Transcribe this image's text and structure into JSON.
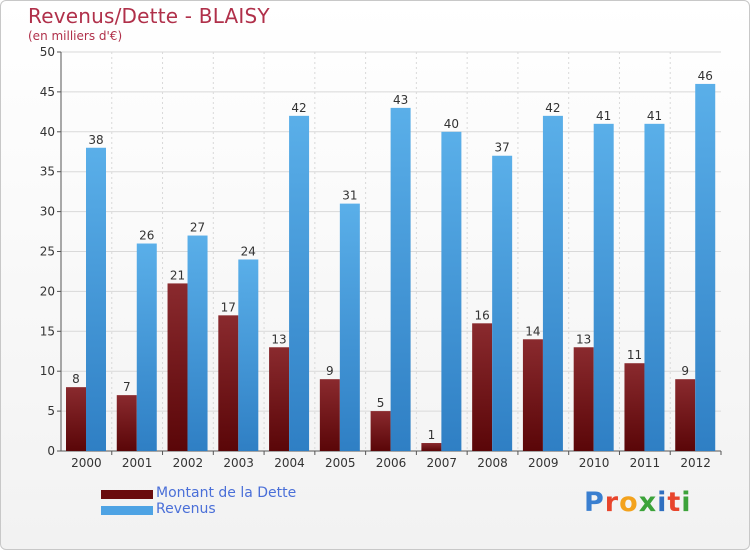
{
  "header": {
    "title": "Revenus/Dette - BLAISY",
    "subtitle": "(en milliers d'€)"
  },
  "chart_data": {
    "type": "bar",
    "title": "Revenus/Dette - BLAISY",
    "subtitle": "(en milliers d'€)",
    "xlabel": "",
    "ylabel": "",
    "categories": [
      "2000",
      "2001",
      "2002",
      "2003",
      "2004",
      "2005",
      "2006",
      "2007",
      "2008",
      "2009",
      "2010",
      "2011",
      "2012"
    ],
    "series": [
      {
        "name": "Montant de la Dette",
        "color": "#7a1416",
        "values": [
          8,
          7,
          21,
          17,
          13,
          9,
          5,
          1,
          16,
          14,
          13,
          11,
          9
        ]
      },
      {
        "name": "Revenus",
        "color": "#4ea3e4",
        "values": [
          38,
          26,
          27,
          24,
          42,
          31,
          43,
          40,
          37,
          42,
          41,
          41,
          46
        ]
      }
    ],
    "ylim": [
      0,
      50
    ],
    "yticks": [
      0,
      5,
      10,
      15,
      20,
      25,
      30,
      35,
      40,
      45,
      50
    ],
    "grid": true,
    "legend_position": "bottom-left"
  },
  "legend": {
    "items": [
      {
        "label": "Montant de la Dette",
        "color": "#7a1416"
      },
      {
        "label": "Revenus",
        "color": "#4ea3e4"
      }
    ]
  },
  "logo": {
    "text": "Proxiti",
    "letter_colors": [
      "#3a7fd0",
      "#e8452c",
      "#f3a21d",
      "#3ca33a",
      "#2f6fc0",
      "#e8452c",
      "#3ca33a"
    ]
  }
}
